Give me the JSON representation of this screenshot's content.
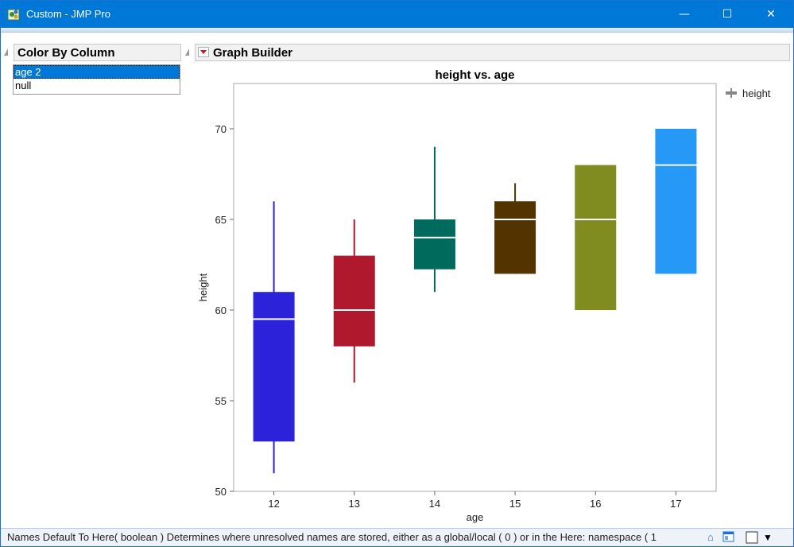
{
  "window": {
    "title": "Custom - JMP Pro",
    "icons": {
      "app": "jmp-app-icon",
      "minimize": "minimize-icon",
      "maximize": "maximize-icon",
      "close": "close-icon"
    },
    "controls": {
      "minimize": "—",
      "maximize": "☐",
      "close": "✕"
    }
  },
  "color_by_column": {
    "title": "Color By Column",
    "items": [
      "age 2",
      "null"
    ],
    "selected": "age 2"
  },
  "graph_builder": {
    "title": "Graph Builder"
  },
  "chart_data": {
    "type": "box",
    "title": "height vs. age",
    "xlabel": "age",
    "ylabel": "height",
    "ylim": [
      50,
      72.5
    ],
    "yticks": [
      50,
      55,
      60,
      65,
      70
    ],
    "categories": [
      "12",
      "13",
      "14",
      "15",
      "16",
      "17"
    ],
    "legend": {
      "label": "height",
      "position": "top-right"
    },
    "grid": false,
    "series": [
      {
        "category": "12",
        "min": 51,
        "q1": 52.75,
        "median": 59.5,
        "q3": 61,
        "max": 66,
        "color": "#2b22d9"
      },
      {
        "category": "13",
        "min": 56,
        "q1": 58,
        "median": 60,
        "q3": 63,
        "max": 65,
        "color": "#b0182d"
      },
      {
        "category": "14",
        "min": 61,
        "q1": 62.25,
        "median": 64,
        "q3": 65,
        "max": 69,
        "color": "#006a5c"
      },
      {
        "category": "15",
        "min": 62,
        "q1": 62,
        "median": 65,
        "q3": 66,
        "max": 67,
        "color": "#533400"
      },
      {
        "category": "16",
        "min": 60,
        "q1": 60,
        "median": 65,
        "q3": 68,
        "max": 68,
        "color": "#808c20"
      },
      {
        "category": "17",
        "min": 62,
        "q1": 62,
        "median": 68,
        "q3": 70,
        "max": 70,
        "color": "#2698f5"
      }
    ]
  },
  "status": {
    "text": "Names Default To Here( boolean )  Determines where unresolved names are stored, either as a global/local ( 0 ) or in the Here: namespace ( 1",
    "icons": [
      "home-icon",
      "window-list-icon",
      "checkbox-icon",
      "dropdown-arrow-icon"
    ]
  }
}
